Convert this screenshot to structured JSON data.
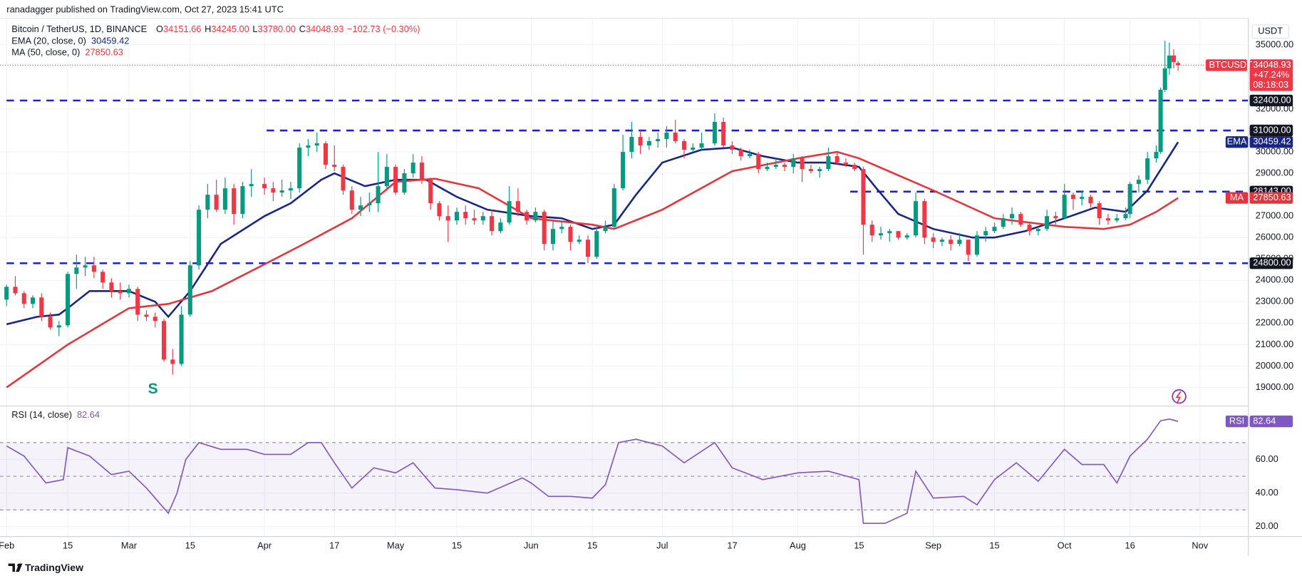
{
  "header": {
    "published": "ranadagger published on TradingView.com, Oct 27, 2023 15:41 UTC",
    "symbol": "Bitcoin / TetherUS, 1D, BINANCE",
    "ohlc": [
      {
        "label": "O",
        "value": "34151.66"
      },
      {
        "label": "H",
        "value": "34245.00"
      },
      {
        "label": "L",
        "value": "33780.00"
      },
      {
        "label": "C",
        "value": "34048.93"
      }
    ],
    "change": "−102.73 (−0.30%)",
    "currency": "USDT",
    "footer": "TradingView"
  },
  "chart_data": [
    {
      "type": "candlestick",
      "up_color": "#089981",
      "down_color": "#f23645",
      "x": [
        32,
        34,
        36,
        38,
        40,
        42,
        44,
        46,
        48,
        50,
        52,
        54,
        56,
        58,
        60,
        62,
        64,
        66,
        68,
        70,
        72,
        74,
        76,
        78,
        80,
        82,
        84,
        86,
        88,
        91,
        93,
        95,
        97,
        99,
        101,
        103,
        105,
        107,
        109,
        111,
        113,
        115,
        117,
        119,
        121,
        123,
        125,
        127,
        129,
        131,
        133,
        135,
        137,
        139,
        141,
        143,
        145,
        147,
        149,
        151,
        153,
        155,
        157,
        159,
        161,
        163,
        165,
        167,
        169,
        171,
        173,
        175,
        177,
        179,
        181,
        183,
        185,
        187,
        189,
        191,
        194,
        196,
        198,
        200,
        202,
        204,
        206,
        208,
        210,
        212,
        214,
        216,
        218,
        220,
        222,
        224,
        226,
        228,
        230,
        232,
        234,
        236,
        238,
        240,
        242,
        244,
        246,
        248,
        250,
        252,
        254,
        256,
        258,
        260,
        262,
        264,
        266,
        268,
        270,
        272,
        274,
        276,
        278,
        280,
        282,
        284,
        286,
        288,
        289,
        291,
        293,
        295,
        296,
        297,
        298,
        299,
        300
      ],
      "open": [
        23100,
        23700,
        23400,
        22900,
        23200,
        22300,
        21800,
        21900,
        24300,
        24600,
        24700,
        24400,
        23900,
        23500,
        23400,
        23600,
        22400,
        22300,
        22100,
        20300,
        20100,
        22400,
        24700,
        27300,
        28000,
        27300,
        28300,
        27100,
        28400,
        28500,
        28300,
        28100,
        28200,
        28300,
        30200,
        30300,
        30400,
        29400,
        29300,
        28200,
        27300,
        27500,
        27600,
        28400,
        29300,
        28100,
        29000,
        29500,
        28700,
        27600,
        27000,
        26800,
        27200,
        26900,
        26800,
        27000,
        26300,
        26700,
        27700,
        27200,
        26800,
        27200,
        25700,
        26400,
        26500,
        25800,
        25900,
        25100,
        26300,
        26500,
        28300,
        30000,
        30700,
        30300,
        30500,
        30600,
        30900,
        30500,
        30100,
        30200,
        30400,
        31400,
        30300,
        30100,
        29800,
        29900,
        29200,
        29300,
        29400,
        29300,
        29700,
        29200,
        29100,
        29200,
        29800,
        29500,
        29400,
        29200,
        26600,
        26100,
        26200,
        26300,
        26000,
        26100,
        27700,
        26000,
        25800,
        25900,
        25700,
        25900,
        25200,
        26100,
        26300,
        26500,
        26900,
        27100,
        26600,
        26300,
        26400,
        27000,
        26900,
        28000,
        27800,
        27900,
        27600,
        26900,
        26800,
        26900,
        27100,
        28500,
        28700,
        29700,
        30000,
        32900,
        33900,
        34500,
        34151.66
      ],
      "high": [
        23800,
        24200,
        23500,
        23300,
        23400,
        22500,
        22100,
        24400,
        25200,
        25100,
        25100,
        24500,
        24100,
        23900,
        23800,
        23700,
        22600,
        22500,
        22200,
        20800,
        22800,
        24900,
        27500,
        28500,
        28700,
        28800,
        28500,
        28600,
        29200,
        28800,
        28600,
        28700,
        28600,
        30400,
        30600,
        30900,
        30500,
        30300,
        29400,
        28400,
        27900,
        28100,
        30000,
        29900,
        29400,
        29200,
        29900,
        29800,
        28800,
        27700,
        27500,
        27400,
        27500,
        27300,
        27200,
        27300,
        26900,
        28400,
        28300,
        27300,
        27400,
        27300,
        26800,
        26800,
        26600,
        26100,
        26100,
        26500,
        26800,
        28500,
        30800,
        31400,
        31000,
        30700,
        30900,
        31200,
        31500,
        30600,
        30400,
        30900,
        31800,
        31600,
        30500,
        30200,
        30100,
        30000,
        29500,
        29700,
        29500,
        29900,
        29800,
        29400,
        29300,
        30200,
        30000,
        29700,
        29500,
        29300,
        26800,
        26500,
        26400,
        26300,
        26200,
        28100,
        27800,
        26200,
        26000,
        26100,
        26200,
        25900,
        26300,
        26500,
        26700,
        27100,
        27400,
        27200,
        26700,
        26500,
        27300,
        27200,
        28500,
        28100,
        28200,
        28000,
        27700,
        27100,
        27100,
        27400,
        28600,
        28900,
        30000,
        30300,
        33000,
        35200,
        35100,
        34800,
        34245
      ],
      "low": [
        22800,
        23300,
        22700,
        22700,
        22100,
        21700,
        21400,
        21800,
        23600,
        24200,
        24100,
        23600,
        23200,
        23100,
        23200,
        22100,
        22100,
        21800,
        20200,
        19600,
        20000,
        22300,
        24500,
        26900,
        27200,
        27100,
        26600,
        26900,
        27900,
        28000,
        27700,
        27900,
        27800,
        28100,
        29800,
        30000,
        29200,
        29100,
        28000,
        27100,
        27000,
        27200,
        27200,
        28300,
        28000,
        28000,
        28800,
        28500,
        27300,
        26800,
        25800,
        26600,
        26600,
        26600,
        26600,
        26100,
        26200,
        26600,
        27000,
        26600,
        26700,
        25400,
        25400,
        26200,
        25400,
        25700,
        24800,
        25000,
        26200,
        26400,
        28200,
        29700,
        29900,
        30100,
        30200,
        30200,
        30400,
        29700,
        30000,
        30100,
        30300,
        30200,
        29900,
        29600,
        29700,
        29000,
        29100,
        29200,
        29100,
        29000,
        28600,
        29000,
        28800,
        29100,
        29400,
        29300,
        29100,
        25200,
        25800,
        25900,
        25800,
        25900,
        25900,
        26000,
        25700,
        25500,
        25600,
        25400,
        25600,
        24900,
        25100,
        25800,
        26200,
        26400,
        26600,
        26500,
        26100,
        26100,
        26300,
        26600,
        26900,
        27300,
        27500,
        27400,
        26600,
        26600,
        26700,
        26800,
        26900,
        28100,
        28500,
        29500,
        29900,
        32800,
        33600,
        33900,
        33780
      ],
      "close": [
        23700,
        23400,
        22900,
        23200,
        22300,
        21800,
        21900,
        24300,
        24600,
        24700,
        24400,
        23900,
        23500,
        23400,
        23600,
        22400,
        22300,
        22100,
        20300,
        20100,
        22400,
        24700,
        27300,
        28000,
        27300,
        28300,
        27100,
        28400,
        28500,
        28300,
        28100,
        28200,
        28300,
        30200,
        30300,
        30400,
        29400,
        29300,
        28200,
        27300,
        27500,
        27600,
        28400,
        29300,
        28100,
        29000,
        29500,
        28700,
        27600,
        27000,
        26800,
        27200,
        26900,
        26800,
        27000,
        26300,
        26700,
        27700,
        27200,
        26800,
        27200,
        25700,
        26400,
        26500,
        25800,
        25900,
        25100,
        26300,
        26500,
        28300,
        30000,
        30700,
        30300,
        30500,
        30600,
        30900,
        30500,
        30100,
        30200,
        30400,
        31400,
        30300,
        30100,
        29800,
        29900,
        29200,
        29300,
        29400,
        29300,
        29700,
        29200,
        29100,
        29200,
        29800,
        29500,
        29400,
        29200,
        26600,
        26100,
        26200,
        26300,
        26000,
        26100,
        27700,
        26000,
        25800,
        25900,
        25700,
        25900,
        25200,
        26100,
        26300,
        26500,
        26900,
        27100,
        26600,
        26300,
        26400,
        27000,
        26900,
        28000,
        27800,
        27900,
        27600,
        26900,
        26800,
        26900,
        27100,
        28500,
        28700,
        29700,
        30000,
        32900,
        33900,
        34500,
        34200,
        34048.93
      ],
      "price_label": {
        "symbol": "BTCUSDT",
        "change": "+47.24%",
        "countdown": "08:18:03"
      },
      "series": [
        {
          "name": "EMA (20, close, 0)",
          "tag": "EMA",
          "color": "#172584",
          "x": [
            32,
            39,
            44,
            46,
            51,
            60,
            66,
            69,
            74,
            81,
            91,
            97,
            104,
            107,
            114,
            121,
            128,
            135,
            142,
            152,
            159,
            166,
            171,
            176,
            182,
            191,
            198,
            205,
            213,
            220,
            227,
            231,
            236,
            244,
            253,
            258,
            265,
            274,
            281,
            288,
            293,
            300
          ],
          "values": [
            21950,
            22300,
            22400,
            22700,
            23500,
            23500,
            23000,
            22300,
            23500,
            25700,
            27000,
            27600,
            28700,
            29000,
            28400,
            28700,
            28700,
            27900,
            27300,
            27000,
            26900,
            26400,
            26600,
            28000,
            29500,
            30100,
            30200,
            29800,
            29500,
            29500,
            29300,
            28300,
            27100,
            26400,
            26000,
            26000,
            26300,
            26900,
            27400,
            27200,
            28200,
            30459.42
          ]
        },
        {
          "name": "MA (50, close, 0)",
          "tag": "MA",
          "color": "#e5343c",
          "x": [
            32,
            46,
            60,
            69,
            79,
            91,
            100,
            111,
            121,
            130,
            140,
            152,
            166,
            171,
            182,
            198,
            213,
            222,
            227,
            244,
            258,
            274,
            283,
            289,
            295,
            300
          ],
          "values": [
            19000,
            21000,
            22700,
            22900,
            23500,
            24750,
            25700,
            26900,
            28600,
            28750,
            28300,
            26900,
            26600,
            26400,
            27300,
            29100,
            29700,
            30000,
            29700,
            28200,
            26900,
            26500,
            26400,
            26600,
            27200,
            27850.63
          ]
        }
      ],
      "levels": [
        {
          "value": 32400,
          "label": "32400.00",
          "start": 32
        },
        {
          "value": 31000,
          "label": "31000.00",
          "start": 91.5
        },
        {
          "value": 28143,
          "label": "28143.00",
          "start": 225
        },
        {
          "value": 24800,
          "label": "24800.00",
          "start": 32
        }
      ],
      "level_color": "#1c22d4",
      "annotations": [
        {
          "text": "S",
          "x": 65.5,
          "y": 18900,
          "color": "#089981"
        }
      ],
      "xlim": [
        30.5,
        316
      ],
      "ylim": [
        18150,
        36240
      ],
      "xticks": [
        {
          "value": 32,
          "label": "Feb"
        },
        {
          "value": 46,
          "label": "15"
        },
        {
          "value": 60,
          "label": "Mar"
        },
        {
          "value": 74,
          "label": "15"
        },
        {
          "value": 91,
          "label": "Apr"
        },
        {
          "value": 107,
          "label": "17"
        },
        {
          "value": 121,
          "label": "May"
        },
        {
          "value": 135,
          "label": "15"
        },
        {
          "value": 152,
          "label": "Jun"
        },
        {
          "value": 166,
          "label": "15"
        },
        {
          "value": 182,
          "label": "Jul"
        },
        {
          "value": 198,
          "label": "17"
        },
        {
          "value": 213,
          "label": "Aug"
        },
        {
          "value": 227,
          "label": "15"
        },
        {
          "value": 244,
          "label": "Sep"
        },
        {
          "value": 258,
          "label": "15"
        },
        {
          "value": 274,
          "label": "Oct"
        },
        {
          "value": 289,
          "label": "16"
        },
        {
          "value": 305,
          "label": "Nov"
        }
      ],
      "yticks": [
        {
          "value": 19000,
          "label": "19000.00"
        },
        {
          "value": 20000,
          "label": "20000.00"
        },
        {
          "value": 21000,
          "label": "21000.00"
        },
        {
          "value": 22000,
          "label": "22000.00"
        },
        {
          "value": 23000,
          "label": "23000.00"
        },
        {
          "value": 24000,
          "label": "24000.00"
        },
        {
          "value": 25000,
          "label": "25000.00"
        },
        {
          "value": 26000,
          "label": "26000.00"
        },
        {
          "value": 27000,
          "label": "27000.00"
        },
        {
          "value": 29000,
          "label": "29000.00"
        },
        {
          "value": 30000,
          "label": "30000.00"
        },
        {
          "value": 32000,
          "label": "32000.00"
        },
        {
          "value": 35000,
          "label": "35000.00"
        }
      ],
      "grid": true
    },
    {
      "type": "line",
      "series": [
        {
          "name": "RSI (14, close)",
          "tag": "RSI",
          "color": "#7e57c2",
          "x": [
            32,
            36,
            41,
            45,
            46,
            51,
            56,
            60,
            64,
            69,
            71,
            73,
            76,
            81,
            87,
            91,
            97,
            101,
            104,
            107,
            111,
            116,
            121,
            125,
            130,
            135,
            142,
            150,
            152,
            156,
            161,
            166,
            169,
            172,
            176,
            182,
            187,
            194,
            198,
            205,
            213,
            220,
            227,
            228,
            233,
            238,
            240,
            244,
            251,
            254,
            258,
            263,
            268,
            274,
            278,
            283,
            286,
            289,
            293,
            296,
            298,
            300
          ],
          "values": [
            68,
            62,
            46,
            48,
            67,
            62,
            51,
            53,
            43,
            28,
            40,
            60,
            70,
            66,
            66,
            63,
            63,
            70,
            70,
            58,
            43,
            55,
            52,
            58,
            43,
            42,
            40,
            49,
            46,
            38,
            38,
            37,
            45,
            70,
            72,
            68,
            58,
            70,
            55,
            48,
            52,
            53,
            48,
            22,
            22,
            28,
            53,
            37,
            38,
            33,
            48,
            58,
            47,
            66,
            57,
            57,
            46,
            62,
            72,
            83,
            84,
            82.64
          ]
        }
      ],
      "band_lines": [
        70,
        50,
        30
      ],
      "ylim": [
        14.4,
        91
      ],
      "yticks": [
        {
          "value": 20,
          "label": "20.00"
        },
        {
          "value": 40,
          "label": "40.00"
        },
        {
          "value": 60,
          "label": "60.00"
        }
      ]
    }
  ]
}
